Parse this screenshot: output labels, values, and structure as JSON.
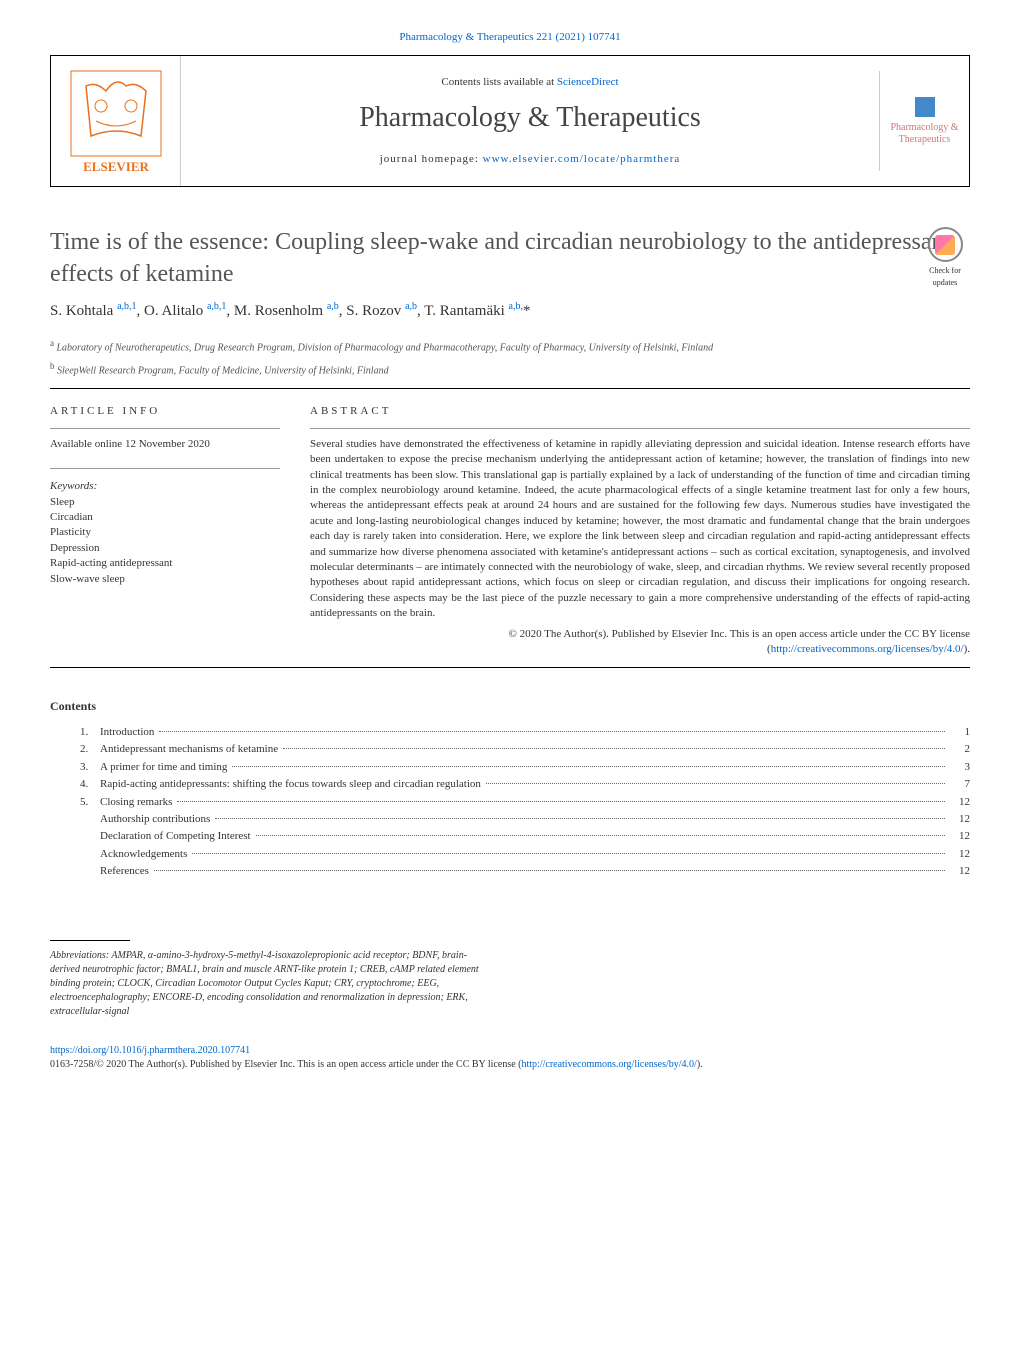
{
  "top_citation": "Pharmacology & Therapeutics 221 (2021) 107741",
  "contents_available": "Contents lists available at",
  "sciencedirect": "ScienceDirect",
  "journal_name": "Pharmacology & Therapeutics",
  "homepage_label": "journal homepage:",
  "homepage_url": "www.elsevier.com/locate/pharmthera",
  "journal_thumb_text": "Pharmacology & Therapeutics",
  "check_updates_label": "Check for updates",
  "title": "Time is of the essence: Coupling sleep-wake and circadian neurobiology to the antidepressant effects of ketamine",
  "authors_html": "S. Kohtala <sup>a,b,1</sup>, O. Alitalo <sup>a,b,1</sup>, M. Rosenholm <sup>a,b</sup>, S. Rozov <sup>a,b</sup>, T. Rantamäki <sup>a,b,</sup>*",
  "affiliations": [
    {
      "sup": "a",
      "text": "Laboratory of Neurotherapeutics, Drug Research Program, Division of Pharmacology and Pharmacotherapy, Faculty of Pharmacy, University of Helsinki, Finland"
    },
    {
      "sup": "b",
      "text": "SleepWell Research Program, Faculty of Medicine, University of Helsinki, Finland"
    }
  ],
  "article_info_heading": "ARTICLE INFO",
  "available_online": "Available online 12 November 2020",
  "keywords_label": "Keywords:",
  "keywords": [
    "Sleep",
    "Circadian",
    "Plasticity",
    "Depression",
    "Rapid-acting antidepressant",
    "Slow-wave sleep"
  ],
  "abstract_heading": "ABSTRACT",
  "abstract_text": "Several studies have demonstrated the effectiveness of ketamine in rapidly alleviating depression and suicidal ideation. Intense research efforts have been undertaken to expose the precise mechanism underlying the antidepressant action of ketamine; however, the translation of findings into new clinical treatments has been slow. This translational gap is partially explained by a lack of understanding of the function of time and circadian timing in the complex neurobiology around ketamine. Indeed, the acute pharmacological effects of a single ketamine treatment last for only a few hours, whereas the antidepressant effects peak at around 24 hours and are sustained for the following few days. Numerous studies have investigated the acute and long-lasting neurobiological changes induced by ketamine; however, the most dramatic and fundamental change that the brain undergoes each day is rarely taken into consideration. Here, we explore the link between sleep and circadian regulation and rapid-acting antidepressant effects and summarize how diverse phenomena associated with ketamine's antidepressant actions – such as cortical excitation, synaptogenesis, and involved molecular determinants – are intimately connected with the neurobiology of wake, sleep, and circadian rhythms. We review several recently proposed hypotheses about rapid antidepressant actions, which focus on sleep or circadian regulation, and discuss their implications for ongoing research. Considering these aspects may be the last piece of the puzzle necessary to gain a more comprehensive understanding of the effects of rapid-acting antidepressants on the brain.",
  "copyright_text": "© 2020 The Author(s). Published by Elsevier Inc. This is an open access article under the CC BY license (",
  "copyright_link": "http://creativecommons.org/licenses/by/4.0/",
  "copyright_close": ").",
  "contents_heading": "Contents",
  "toc": [
    {
      "num": "1.",
      "text": "Introduction",
      "page": "1"
    },
    {
      "num": "2.",
      "text": "Antidepressant mechanisms of ketamine",
      "page": "2"
    },
    {
      "num": "3.",
      "text": "A primer for time and timing",
      "page": "3"
    },
    {
      "num": "4.",
      "text": "Rapid-acting antidepressants: shifting the focus towards sleep and circadian regulation",
      "page": "7"
    },
    {
      "num": "5.",
      "text": "Closing remarks",
      "page": "12"
    },
    {
      "num": "",
      "text": "Authorship contributions",
      "page": "12"
    },
    {
      "num": "",
      "text": "Declaration of Competing Interest",
      "page": "12"
    },
    {
      "num": "",
      "text": "Acknowledgements",
      "page": "12"
    },
    {
      "num": "",
      "text": "References",
      "page": "12"
    }
  ],
  "abbrev_label": "Abbreviations:",
  "abbrev_text": "AMPAR, α-amino-3-hydroxy-5-methyl-4-isoxazolepropionic acid receptor; BDNF, brain-derived neurotrophic factor; BMAL1, brain and muscle ARNT-like protein 1; CREB, cAMP related element binding protein; CLOCK, Circadian Locomotor Output Cycles Kaput; CRY, cryptochrome; EEG, electroencephalography; ENCORE-D, encoding consolidation and renormalization in depression; ERK, extracellular-signal",
  "doi_url": "https://doi.org/10.1016/j.pharmthera.2020.107741",
  "license_text": "0163-7258/© 2020 The Author(s). Published by Elsevier Inc. This is an open access article under the CC BY license (",
  "license_url": "http://creativecommons.org/licenses/by/4.0/",
  "license_close": ").",
  "colors": {
    "link": "#0066cc",
    "elsevier_orange": "#e9711c",
    "text": "#333333"
  }
}
